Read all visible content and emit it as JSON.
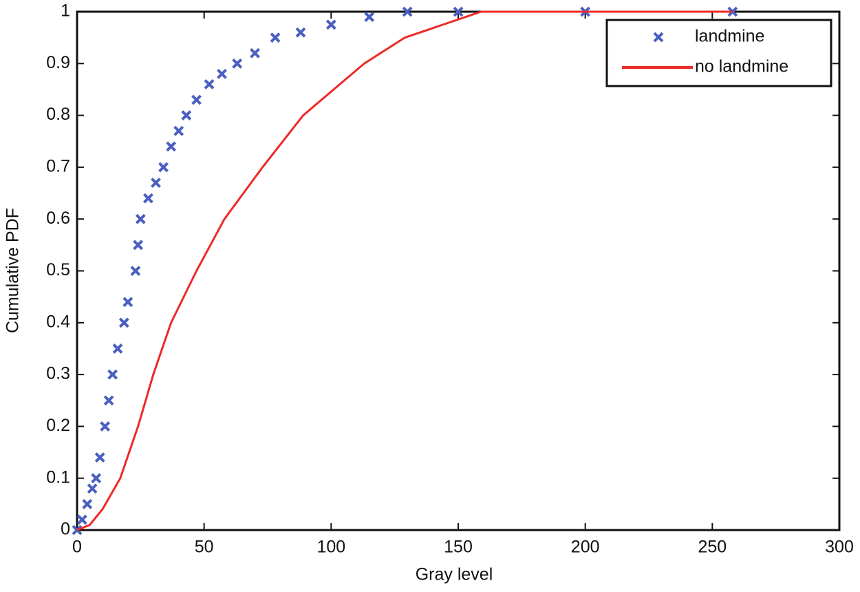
{
  "chart_data": {
    "type": "line",
    "xlabel": "Gray level",
    "ylabel": "Cumulative PDF",
    "xlim": [
      0,
      300
    ],
    "ylim": [
      0,
      1
    ],
    "xticks": [
      0,
      50,
      100,
      150,
      200,
      250,
      300
    ],
    "yticks": [
      0,
      0.1,
      0.2,
      0.3,
      0.4,
      0.5,
      0.6,
      0.7,
      0.8,
      0.9,
      1
    ],
    "legend": "northeast",
    "series": [
      {
        "name": "landmine",
        "color": "#4a5fc1",
        "marker": "x",
        "x": [
          0,
          2,
          4,
          6,
          7.5,
          9,
          11,
          12.5,
          14,
          16,
          18.5,
          20,
          23,
          24,
          25,
          28,
          31,
          34,
          37,
          40,
          43,
          47,
          52,
          57,
          63,
          70,
          78,
          88,
          100,
          115,
          130,
          150,
          200,
          258
        ],
        "values": [
          0,
          0.02,
          0.05,
          0.08,
          0.1,
          0.14,
          0.2,
          0.25,
          0.3,
          0.35,
          0.4,
          0.44,
          0.5,
          0.55,
          0.6,
          0.64,
          0.67,
          0.7,
          0.74,
          0.77,
          0.8,
          0.83,
          0.86,
          0.88,
          0.9,
          0.92,
          0.95,
          0.96,
          0.975,
          0.99,
          1,
          1,
          1,
          1
        ]
      },
      {
        "name": "no landmine",
        "color": "#ee2a2a",
        "x": [
          0,
          5,
          10,
          17,
          24,
          30,
          37,
          47,
          58,
          73,
          89,
          113,
          129,
          159,
          200,
          258
        ],
        "values": [
          0,
          0.01,
          0.04,
          0.1,
          0.2,
          0.3,
          0.4,
          0.5,
          0.6,
          0.7,
          0.8,
          0.9,
          0.95,
          1,
          1,
          1
        ]
      }
    ]
  }
}
